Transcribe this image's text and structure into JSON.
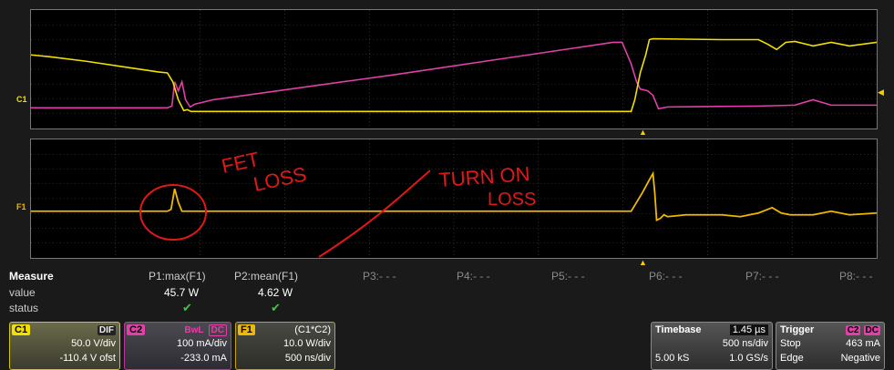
{
  "channels": {
    "upper_label": "C1",
    "lower_label": "F1"
  },
  "annotations": {
    "fet_loss_line1": "FET",
    "fet_loss_line2": "LOSS",
    "turn_on_line1": "TURN ON",
    "turn_on_line2": "LOSS"
  },
  "measure": {
    "header": "Measure",
    "row_value": "value",
    "row_status": "status",
    "params": [
      {
        "name": "P1:max(F1)",
        "value": "45.7 W",
        "status": "✔"
      },
      {
        "name": "P2:mean(F1)",
        "value": "4.62 W",
        "status": "✔"
      },
      {
        "name": "P3:- - -",
        "value": "",
        "status": ""
      },
      {
        "name": "P4:- - -",
        "value": "",
        "status": ""
      },
      {
        "name": "P5:- - -",
        "value": "",
        "status": ""
      },
      {
        "name": "P6:- - -",
        "value": "",
        "status": ""
      },
      {
        "name": "P7:- - -",
        "value": "",
        "status": ""
      },
      {
        "name": "P8:- - -",
        "value": "",
        "status": ""
      }
    ]
  },
  "descriptors": {
    "c1": {
      "tag": "C1",
      "flag": "DIF",
      "scale": "50.0 V/div",
      "offset": "-110.4 V ofst"
    },
    "c2": {
      "tag": "C2",
      "flag1": "BwL",
      "flag2": "DC",
      "scale": "100 mA/div",
      "offset": "-233.0 mA"
    },
    "f1": {
      "tag": "F1",
      "expr": "(C1*C2)",
      "scale": "10.0 W/div",
      "time": "500 ns/div"
    },
    "timebase": {
      "label": "Timebase",
      "delay": "1.45 µs",
      "per_div": "500 ns/div",
      "samples": "5.00 kS",
      "rate": "1.0 GS/s"
    },
    "trigger": {
      "label": "Trigger",
      "src": "C2",
      "coupling": "DC",
      "mode": "Stop",
      "level": "463 mA",
      "type": "Edge",
      "slope": "Negative"
    }
  },
  "colors": {
    "c1": "#f2e000",
    "c2": "#e040a8",
    "f1": "#f0b800",
    "annotation": "#e01818"
  }
}
